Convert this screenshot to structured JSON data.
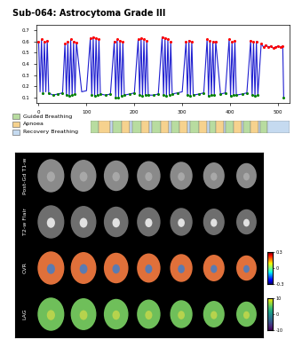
{
  "title": "Sub-064: Astrocytoma Grade III",
  "chart_data": {
    "type": "line",
    "color": "#1f1fd0",
    "x": [
      0,
      3,
      6,
      9,
      12,
      15,
      18,
      21,
      30,
      40,
      50,
      55,
      58,
      61,
      64,
      67,
      70,
      73,
      76,
      79,
      90,
      100,
      108,
      111,
      114,
      117,
      120,
      123,
      126,
      129,
      140,
      150,
      158,
      161,
      164,
      167,
      170,
      173,
      176,
      179,
      190,
      200,
      208,
      211,
      214,
      217,
      220,
      223,
      226,
      229,
      240,
      250,
      258,
      261,
      264,
      267,
      270,
      273,
      276,
      279,
      290,
      300,
      308,
      311,
      314,
      317,
      320,
      323,
      335,
      345,
      352,
      355,
      358,
      361,
      364,
      367,
      370,
      380,
      390,
      398,
      401,
      404,
      407,
      410,
      413,
      425,
      435,
      443,
      446,
      449,
      452,
      455,
      458,
      465,
      470,
      475,
      480,
      485,
      490,
      495,
      500,
      505,
      510,
      512
    ],
    "values": [
      0.6,
      0.15,
      0.62,
      0.14,
      0.6,
      0.15,
      0.61,
      0.14,
      0.12,
      0.13,
      0.14,
      0.58,
      0.12,
      0.6,
      0.11,
      0.62,
      0.12,
      0.6,
      0.13,
      0.59,
      0.15,
      0.16,
      0.63,
      0.12,
      0.64,
      0.11,
      0.63,
      0.12,
      0.62,
      0.13,
      0.12,
      0.13,
      0.6,
      0.1,
      0.62,
      0.1,
      0.61,
      0.11,
      0.6,
      0.12,
      0.13,
      0.14,
      0.62,
      0.12,
      0.63,
      0.11,
      0.62,
      0.12,
      0.61,
      0.12,
      0.12,
      0.13,
      0.64,
      0.12,
      0.63,
      0.11,
      0.62,
      0.12,
      0.6,
      0.13,
      0.14,
      0.15,
      0.6,
      0.12,
      0.61,
      0.11,
      0.6,
      0.12,
      0.13,
      0.14,
      0.62,
      0.11,
      0.61,
      0.12,
      0.6,
      0.12,
      0.6,
      0.13,
      0.14,
      0.62,
      0.11,
      0.6,
      0.12,
      0.61,
      0.12,
      0.13,
      0.14,
      0.61,
      0.12,
      0.6,
      0.11,
      0.6,
      0.12,
      0.58,
      0.55,
      0.57,
      0.55,
      0.56,
      0.54,
      0.55,
      0.56,
      0.55,
      0.56,
      0.1
    ],
    "xlim": [
      -5,
      525
    ],
    "xticks": [
      0,
      100,
      200,
      300,
      400,
      500
    ],
    "ylim": [
      0.05,
      0.75
    ],
    "yticks": [
      0.1,
      0.2,
      0.3,
      0.4,
      0.5,
      0.6,
      0.7
    ]
  },
  "timeline": {
    "phases": [
      {
        "name": "Guided Breathing",
        "color": "#b8dca0"
      },
      {
        "name": "Apnoea",
        "color": "#f6d28e"
      },
      {
        "name": "Recovery Breathing",
        "color": "#c5daf0"
      }
    ],
    "segments": [
      [
        0,
        22,
        0
      ],
      [
        22,
        50,
        1
      ],
      [
        50,
        58,
        2
      ],
      [
        58,
        80,
        0
      ],
      [
        80,
        103,
        1
      ],
      [
        103,
        110,
        2
      ],
      [
        110,
        132,
        0
      ],
      [
        132,
        153,
        1
      ],
      [
        153,
        160,
        2
      ],
      [
        160,
        182,
        0
      ],
      [
        182,
        203,
        1
      ],
      [
        203,
        210,
        2
      ],
      [
        210,
        232,
        0
      ],
      [
        232,
        253,
        1
      ],
      [
        253,
        260,
        2
      ],
      [
        260,
        282,
        0
      ],
      [
        282,
        303,
        1
      ],
      [
        303,
        310,
        2
      ],
      [
        310,
        326,
        0
      ],
      [
        326,
        347,
        1
      ],
      [
        347,
        352,
        2
      ],
      [
        352,
        372,
        0
      ],
      [
        372,
        393,
        1
      ],
      [
        393,
        398,
        2
      ],
      [
        398,
        416,
        0
      ],
      [
        416,
        438,
        1
      ],
      [
        438,
        443,
        2
      ],
      [
        443,
        460,
        0
      ],
      [
        460,
        520,
        2
      ]
    ]
  },
  "image_grid": {
    "columns": 7,
    "row_labels": [
      "Post-Gd T1-w",
      "T2-w Flair",
      "CVR",
      "LAG"
    ],
    "colorbars": [
      {
        "row": 2,
        "range": [
          -0.3,
          0.3
        ],
        "ticks": [
          -0.3,
          0,
          0.3
        ]
      },
      {
        "row": 3,
        "range": [
          -10,
          10
        ],
        "ticks": [
          -10,
          0,
          10
        ]
      }
    ]
  }
}
